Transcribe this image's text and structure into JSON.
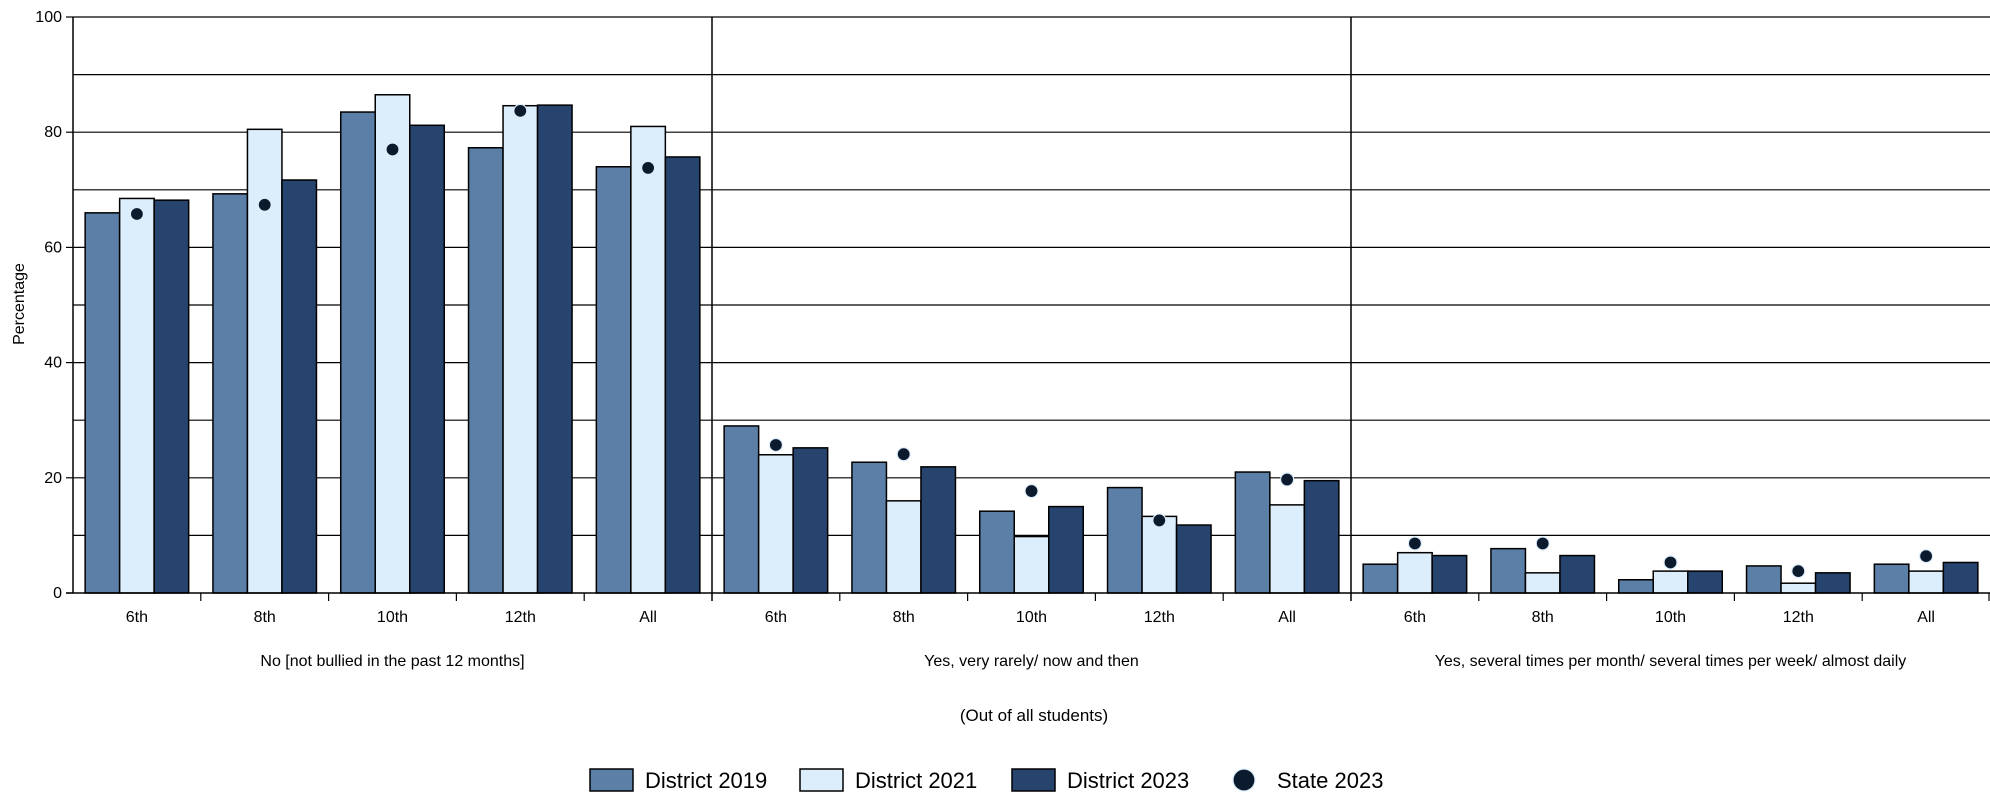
{
  "chart_data": {
    "type": "bar",
    "ylabel": "Percentage",
    "xlabel": "(Out of all students)",
    "ylim": [
      0,
      100
    ],
    "yticks": [
      0,
      20,
      40,
      60,
      80,
      100
    ],
    "grid": true,
    "legend_position": "bottom",
    "grade_labels": [
      "6th",
      "8th",
      "10th",
      "12th",
      "All"
    ],
    "groups": [
      "No [not bullied in the past 12 months]",
      "Yes, very rarely/ now and then",
      "Yes, several times per month/ several times per week/ almost daily"
    ],
    "series": [
      {
        "name": "District 2019",
        "kind": "bar",
        "color": "#5b7fa6",
        "values": [
          [
            66,
            69.3,
            83.5,
            77.3,
            74
          ],
          [
            29,
            22.7,
            14.2,
            18.3,
            21
          ],
          [
            5,
            7.7,
            2.3,
            4.7,
            5
          ]
        ]
      },
      {
        "name": "District 2021",
        "kind": "bar",
        "color": "#dcedfb",
        "values": [
          [
            68.5,
            80.5,
            86.5,
            84.6,
            81
          ],
          [
            24,
            16,
            9.8,
            13.3,
            15.3
          ],
          [
            7,
            3.5,
            3.8,
            1.7,
            3.8
          ]
        ]
      },
      {
        "name": "District 2023",
        "kind": "bar",
        "color": "#27446e",
        "values": [
          [
            68.2,
            71.7,
            81.2,
            84.7,
            75.7
          ],
          [
            25.2,
            21.9,
            15,
            11.8,
            19.5
          ],
          [
            6.5,
            6.5,
            3.8,
            3.5,
            5.3
          ]
        ]
      },
      {
        "name": "State 2023",
        "kind": "dot",
        "color": "#000000",
        "values": [
          [
            65.8,
            67.4,
            77,
            83.7,
            73.8
          ],
          [
            25.7,
            24.1,
            17.7,
            12.6,
            19.7
          ],
          [
            8.6,
            8.6,
            5.3,
            3.8,
            6.4
          ]
        ]
      }
    ]
  }
}
